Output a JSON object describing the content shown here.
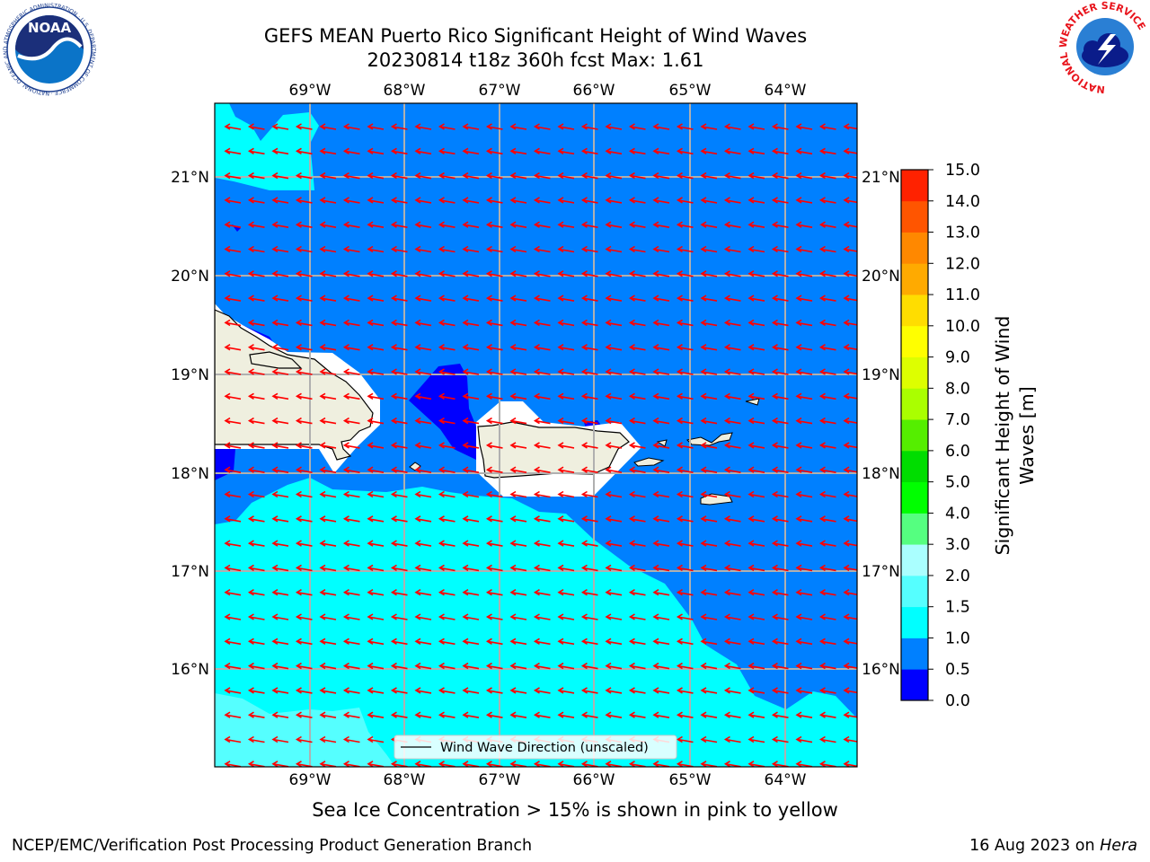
{
  "title": {
    "line1": "GEFS MEAN Puerto Rico Significant Height of Wind Waves",
    "line2": "20230814 t18z 360h fcst   Max: 1.61"
  },
  "map": {
    "lon_labels": [
      "69°W",
      "68°W",
      "67°W",
      "66°W",
      "65°W",
      "64°W"
    ],
    "lat_labels": [
      "21°N",
      "20°N",
      "19°N",
      "18°N",
      "17°N",
      "16°N"
    ],
    "legend_label": "Wind Wave Direction (unscaled)",
    "arrow_color": "#ff0000",
    "wave_direction": "westward"
  },
  "colorbar": {
    "label": "Significant Height of Wind Waves [m]",
    "ticks": [
      "0.0",
      "0.5",
      "1.0",
      "1.5",
      "2.0",
      "3.0",
      "4.0",
      "5.0",
      "6.0",
      "7.0",
      "8.0",
      "9.0",
      "10.0",
      "11.0",
      "12.0",
      "13.0",
      "14.0",
      "15.0"
    ],
    "colors": [
      "#0000ff",
      "#0080ff",
      "#00ffff",
      "#55ffff",
      "#aaffff",
      "#55ff80",
      "#00ff00",
      "#00dd00",
      "#55ee00",
      "#aaff00",
      "#ddff00",
      "#ffff00",
      "#ffdd00",
      "#ffaa00",
      "#ff8800",
      "#ff5500",
      "#ff2200"
    ]
  },
  "caption": "Sea Ice Concentration > 15% is shown in pink to yellow",
  "footer": {
    "left": "NCEP/EMC/Verification Post Processing Product Generation Branch",
    "date": "16 Aug 2023 on",
    "host": "Hera"
  },
  "logos": {
    "noaa": {
      "text": "NOAA",
      "ring": "NATIONAL OCEANIC AND ATMOSPHERIC ADMINISTRATION · U.S. DEPARTMENT OF COMMERCE ·"
    },
    "nws": {
      "ring": "NATIONAL WEATHER SERVICE"
    }
  }
}
